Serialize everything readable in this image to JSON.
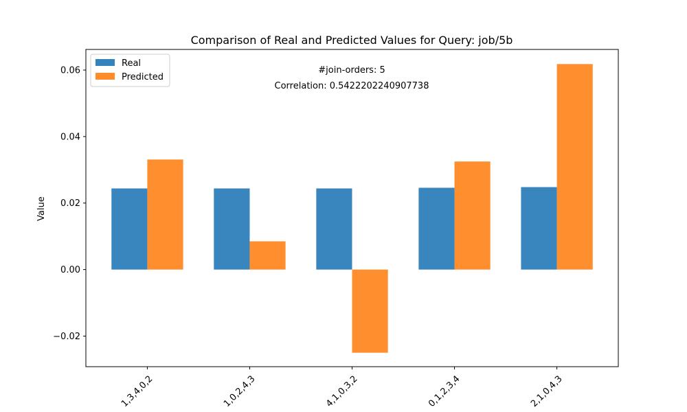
{
  "chart_data": {
    "type": "bar",
    "title": "Comparison of Real and Predicted Values for Query: job/5b",
    "xlabel": "",
    "ylabel": "Value",
    "categories": [
      "1,3,4,0,2",
      "1,0,2,4,3",
      "4,1,0,3,2",
      "0,1,2,3,4",
      "2,1,0,4,3"
    ],
    "series": [
      {
        "name": "Real",
        "color": "#3583bc",
        "values": [
          0.0244,
          0.0244,
          0.0244,
          0.0246,
          0.0248
        ]
      },
      {
        "name": "Predicted",
        "color": "#ff8c2a",
        "values": [
          0.0331,
          0.0085,
          -0.025,
          0.0325,
          0.0618
        ]
      }
    ],
    "ylim": [
      -0.0292,
      0.0662
    ],
    "yticks": [
      -0.02,
      0.0,
      0.02,
      0.04,
      0.06
    ],
    "ytick_labels": [
      "−0.02",
      "0.00",
      "0.02",
      "0.04",
      "0.06"
    ],
    "annotations": [
      "#join-orders: 5",
      "Correlation: 0.5422202240907738"
    ],
    "legend": "top-left",
    "grid": false
  }
}
